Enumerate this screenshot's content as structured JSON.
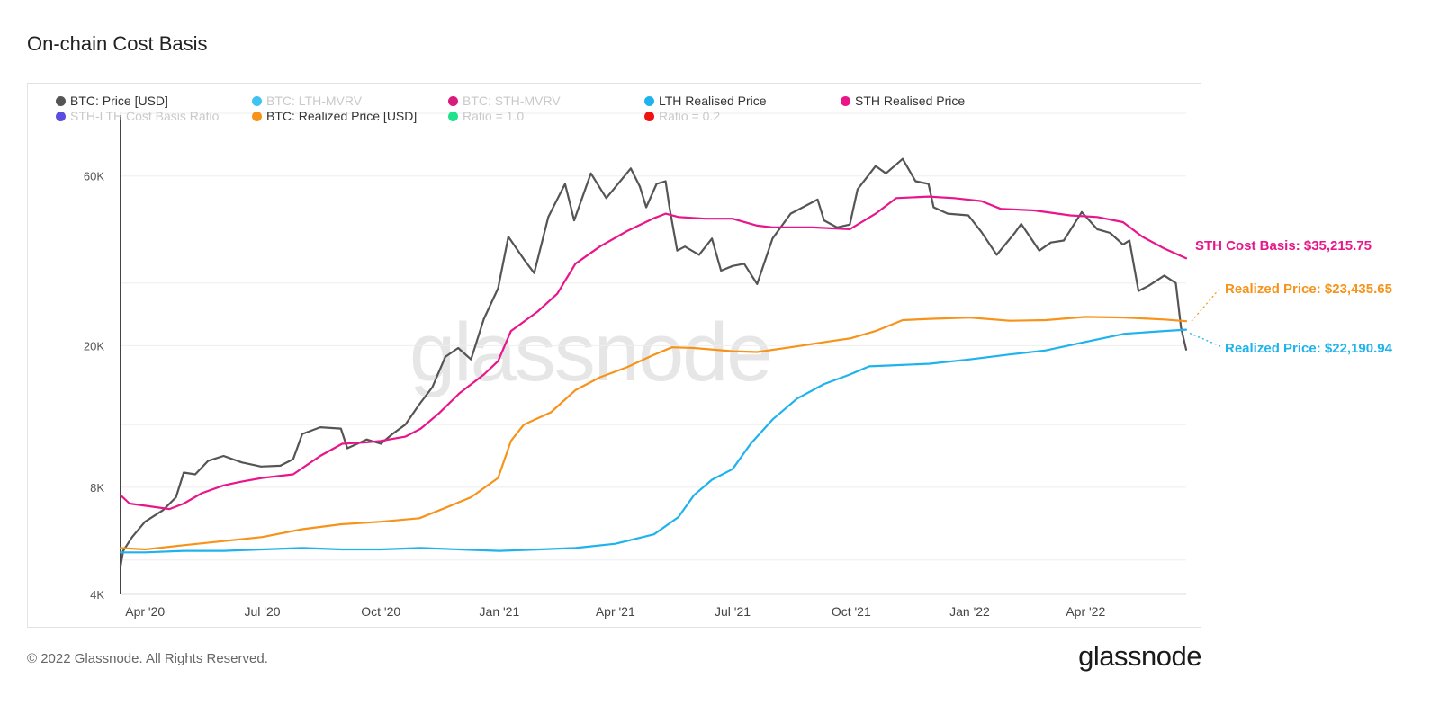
{
  "title": "On-chain Cost Basis",
  "footer": "© 2022 Glassnode. All Rights Reserved.",
  "brand": "glassnode",
  "watermark": "glassnode",
  "legend": [
    {
      "label": "BTC: Price [USD]",
      "color": "#555555",
      "active": true
    },
    {
      "label": "BTC: LTH-MVRV",
      "color": "#3fc3f2",
      "active": false
    },
    {
      "label": "BTC: STH-MVRV",
      "color": "#d81b7d",
      "active": false
    },
    {
      "label": "LTH Realised Price",
      "color": "#1fb3ee",
      "active": true
    },
    {
      "label": "STH Realised Price",
      "color": "#e8168a",
      "active": true
    },
    {
      "label": "STH-LTH Cost Basis Ratio",
      "color": "#5b4de0",
      "active": false
    },
    {
      "label": "BTC: Realized Price [USD]",
      "color": "#f7931a",
      "active": true
    },
    {
      "label": "Ratio = 1.0",
      "color": "#1ee38a",
      "active": false
    },
    {
      "label": "Ratio = 0.2",
      "color": "#f21111",
      "active": false
    }
  ],
  "annotations": {
    "sth": {
      "text": "STH Cost Basis: $35,215.75",
      "color": "#e8168a"
    },
    "realized": {
      "text": "Realized Price: $23,435.65",
      "color": "#f7931a"
    },
    "lth": {
      "text": "Realized Price: $22,190.94",
      "color": "#1fb3ee"
    }
  },
  "chart_data": {
    "type": "line",
    "xlabel": "",
    "ylabel": "",
    "y_scale": "log",
    "ylim": [
      4000,
      90000
    ],
    "xlim": [
      "2020-03-13",
      "2022-06-18"
    ],
    "x_ticks": [
      {
        "date": "2020-04-01",
        "label": "Apr '20"
      },
      {
        "date": "2020-07-01",
        "label": "Jul '20"
      },
      {
        "date": "2020-10-01",
        "label": "Oct '20"
      },
      {
        "date": "2021-01-01",
        "label": "Jan '21"
      },
      {
        "date": "2021-04-01",
        "label": "Apr '21"
      },
      {
        "date": "2021-07-01",
        "label": "Jul '21"
      },
      {
        "date": "2021-10-01",
        "label": "Oct '21"
      },
      {
        "date": "2022-01-01",
        "label": "Jan '22"
      },
      {
        "date": "2022-04-01",
        "label": "Apr '22"
      }
    ],
    "y_ticks": [
      {
        "value": 4000,
        "label": "4K"
      },
      {
        "value": 8000,
        "label": "8K"
      },
      {
        "value": 20000,
        "label": "20K"
      },
      {
        "value": 60000,
        "label": "60K"
      }
    ],
    "grid": true,
    "legend_position": "top",
    "series": [
      {
        "name": "BTC: Price [USD]",
        "color": "#555555",
        "points": [
          [
            "2020-03-13",
            4800
          ],
          [
            "2020-03-15",
            5300
          ],
          [
            "2020-03-22",
            5800
          ],
          [
            "2020-04-01",
            6400
          ],
          [
            "2020-04-15",
            6900
          ],
          [
            "2020-04-25",
            7500
          ],
          [
            "2020-05-01",
            8800
          ],
          [
            "2020-05-10",
            8700
          ],
          [
            "2020-05-20",
            9500
          ],
          [
            "2020-06-01",
            9800
          ],
          [
            "2020-06-15",
            9400
          ],
          [
            "2020-06-30",
            9150
          ],
          [
            "2020-07-15",
            9200
          ],
          [
            "2020-07-25",
            9600
          ],
          [
            "2020-08-01",
            11300
          ],
          [
            "2020-08-15",
            11800
          ],
          [
            "2020-08-31",
            11700
          ],
          [
            "2020-09-05",
            10300
          ],
          [
            "2020-09-20",
            10900
          ],
          [
            "2020-10-01",
            10600
          ],
          [
            "2020-10-10",
            11300
          ],
          [
            "2020-10-20",
            12000
          ],
          [
            "2020-10-31",
            13700
          ],
          [
            "2020-11-10",
            15300
          ],
          [
            "2020-11-20",
            18600
          ],
          [
            "2020-11-30",
            19700
          ],
          [
            "2020-12-10",
            18300
          ],
          [
            "2020-12-20",
            23800
          ],
          [
            "2020-12-31",
            29000
          ],
          [
            "2021-01-08",
            40500
          ],
          [
            "2021-01-20",
            35000
          ],
          [
            "2021-01-28",
            32000
          ],
          [
            "2021-02-08",
            46000
          ],
          [
            "2021-02-21",
            57000
          ],
          [
            "2021-02-28",
            45000
          ],
          [
            "2021-03-13",
            61000
          ],
          [
            "2021-03-25",
            52000
          ],
          [
            "2021-04-13",
            63000
          ],
          [
            "2021-04-20",
            56000
          ],
          [
            "2021-04-25",
            49000
          ],
          [
            "2021-05-03",
            57000
          ],
          [
            "2021-05-10",
            58000
          ],
          [
            "2021-05-13",
            49000
          ],
          [
            "2021-05-19",
            37000
          ],
          [
            "2021-05-25",
            38000
          ],
          [
            "2021-06-05",
            36000
          ],
          [
            "2021-06-15",
            40000
          ],
          [
            "2021-06-22",
            32500
          ],
          [
            "2021-07-01",
            33500
          ],
          [
            "2021-07-10",
            34000
          ],
          [
            "2021-07-20",
            29800
          ],
          [
            "2021-08-01",
            40000
          ],
          [
            "2021-08-15",
            47000
          ],
          [
            "2021-09-05",
            51500
          ],
          [
            "2021-09-10",
            45000
          ],
          [
            "2021-09-20",
            43000
          ],
          [
            "2021-09-30",
            43800
          ],
          [
            "2021-10-06",
            55000
          ],
          [
            "2021-10-20",
            64000
          ],
          [
            "2021-10-28",
            61000
          ],
          [
            "2021-11-10",
            67000
          ],
          [
            "2021-11-20",
            58000
          ],
          [
            "2021-11-30",
            57000
          ],
          [
            "2021-12-04",
            49000
          ],
          [
            "2021-12-15",
            47000
          ],
          [
            "2021-12-31",
            46500
          ],
          [
            "2022-01-10",
            41800
          ],
          [
            "2022-01-22",
            36000
          ],
          [
            "2022-02-05",
            41500
          ],
          [
            "2022-02-10",
            44000
          ],
          [
            "2022-02-24",
            37000
          ],
          [
            "2022-03-05",
            39000
          ],
          [
            "2022-03-15",
            39500
          ],
          [
            "2022-03-29",
            47500
          ],
          [
            "2022-04-10",
            42500
          ],
          [
            "2022-04-20",
            41500
          ],
          [
            "2022-04-30",
            38500
          ],
          [
            "2022-05-05",
            39500
          ],
          [
            "2022-05-12",
            28500
          ],
          [
            "2022-05-20",
            29500
          ],
          [
            "2022-06-01",
            31500
          ],
          [
            "2022-06-10",
            30000
          ],
          [
            "2022-06-14",
            22500
          ],
          [
            "2022-06-18",
            19500
          ]
        ]
      },
      {
        "name": "STH Realised Price",
        "color": "#e8168a",
        "points": [
          [
            "2020-03-13",
            7600
          ],
          [
            "2020-03-20",
            7200
          ],
          [
            "2020-04-01",
            7100
          ],
          [
            "2020-04-20",
            6950
          ],
          [
            "2020-05-01",
            7200
          ],
          [
            "2020-05-15",
            7700
          ],
          [
            "2020-06-01",
            8100
          ],
          [
            "2020-06-15",
            8300
          ],
          [
            "2020-07-01",
            8500
          ],
          [
            "2020-07-25",
            8700
          ],
          [
            "2020-08-15",
            9800
          ],
          [
            "2020-09-01",
            10600
          ],
          [
            "2020-09-20",
            10700
          ],
          [
            "2020-10-01",
            10800
          ],
          [
            "2020-10-20",
            11100
          ],
          [
            "2020-11-01",
            11700
          ],
          [
            "2020-11-15",
            12900
          ],
          [
            "2020-12-01",
            14700
          ],
          [
            "2020-12-20",
            16600
          ],
          [
            "2020-12-31",
            18100
          ],
          [
            "2021-01-10",
            22000
          ],
          [
            "2021-01-31",
            25000
          ],
          [
            "2021-02-15",
            28000
          ],
          [
            "2021-03-01",
            34000
          ],
          [
            "2021-03-20",
            38000
          ],
          [
            "2021-04-10",
            42000
          ],
          [
            "2021-04-30",
            45500
          ],
          [
            "2021-05-10",
            47000
          ],
          [
            "2021-05-20",
            46000
          ],
          [
            "2021-06-10",
            45500
          ],
          [
            "2021-07-01",
            45500
          ],
          [
            "2021-07-20",
            43500
          ],
          [
            "2021-08-01",
            43000
          ],
          [
            "2021-09-01",
            43000
          ],
          [
            "2021-09-30",
            42500
          ],
          [
            "2021-10-20",
            47000
          ],
          [
            "2021-11-05",
            52000
          ],
          [
            "2021-11-30",
            52500
          ],
          [
            "2021-12-20",
            52000
          ],
          [
            "2022-01-10",
            51000
          ],
          [
            "2022-01-25",
            48500
          ],
          [
            "2022-02-20",
            48000
          ],
          [
            "2022-03-20",
            46500
          ],
          [
            "2022-04-10",
            46000
          ],
          [
            "2022-04-30",
            44500
          ],
          [
            "2022-05-15",
            40500
          ],
          [
            "2022-06-01",
            37500
          ],
          [
            "2022-06-18",
            35215.75
          ]
        ]
      },
      {
        "name": "BTC: Realized Price [USD]",
        "color": "#f7931a",
        "points": [
          [
            "2020-03-13",
            5400
          ],
          [
            "2020-04-01",
            5350
          ],
          [
            "2020-05-01",
            5500
          ],
          [
            "2020-06-01",
            5650
          ],
          [
            "2020-07-01",
            5800
          ],
          [
            "2020-08-01",
            6100
          ],
          [
            "2020-09-01",
            6300
          ],
          [
            "2020-10-01",
            6400
          ],
          [
            "2020-10-31",
            6550
          ],
          [
            "2020-11-20",
            7000
          ],
          [
            "2020-12-10",
            7500
          ],
          [
            "2020-12-31",
            8500
          ],
          [
            "2021-01-10",
            10800
          ],
          [
            "2021-01-20",
            12000
          ],
          [
            "2021-02-10",
            13000
          ],
          [
            "2021-03-01",
            15000
          ],
          [
            "2021-03-20",
            16300
          ],
          [
            "2021-04-10",
            17400
          ],
          [
            "2021-04-30",
            18800
          ],
          [
            "2021-05-15",
            19800
          ],
          [
            "2021-06-01",
            19700
          ],
          [
            "2021-07-01",
            19300
          ],
          [
            "2021-07-20",
            19200
          ],
          [
            "2021-08-15",
            19800
          ],
          [
            "2021-09-15",
            20600
          ],
          [
            "2021-10-01",
            21000
          ],
          [
            "2021-10-20",
            22000
          ],
          [
            "2021-11-10",
            23600
          ],
          [
            "2021-12-01",
            23800
          ],
          [
            "2022-01-01",
            24000
          ],
          [
            "2022-02-01",
            23500
          ],
          [
            "2022-03-01",
            23600
          ],
          [
            "2022-04-01",
            24100
          ],
          [
            "2022-05-01",
            24000
          ],
          [
            "2022-06-01",
            23700
          ],
          [
            "2022-06-18",
            23435.65
          ]
        ]
      },
      {
        "name": "LTH Realised Price",
        "color": "#1fb3ee",
        "points": [
          [
            "2020-03-13",
            5250
          ],
          [
            "2020-04-01",
            5250
          ],
          [
            "2020-05-01",
            5300
          ],
          [
            "2020-06-01",
            5300
          ],
          [
            "2020-07-01",
            5350
          ],
          [
            "2020-08-01",
            5400
          ],
          [
            "2020-09-01",
            5350
          ],
          [
            "2020-10-01",
            5350
          ],
          [
            "2020-11-01",
            5400
          ],
          [
            "2020-12-01",
            5350
          ],
          [
            "2021-01-01",
            5300
          ],
          [
            "2021-02-01",
            5350
          ],
          [
            "2021-03-01",
            5400
          ],
          [
            "2021-04-01",
            5550
          ],
          [
            "2021-05-01",
            5900
          ],
          [
            "2021-05-20",
            6600
          ],
          [
            "2021-06-01",
            7600
          ],
          [
            "2021-06-15",
            8400
          ],
          [
            "2021-07-01",
            9000
          ],
          [
            "2021-07-15",
            10600
          ],
          [
            "2021-08-01",
            12400
          ],
          [
            "2021-08-20",
            14200
          ],
          [
            "2021-09-10",
            15600
          ],
          [
            "2021-09-30",
            16600
          ],
          [
            "2021-10-15",
            17500
          ],
          [
            "2021-11-01",
            17600
          ],
          [
            "2021-12-01",
            17800
          ],
          [
            "2022-01-01",
            18300
          ],
          [
            "2022-02-01",
            18900
          ],
          [
            "2022-03-01",
            19400
          ],
          [
            "2022-04-01",
            20500
          ],
          [
            "2022-05-01",
            21600
          ],
          [
            "2022-06-01",
            22000
          ],
          [
            "2022-06-18",
            22190.94
          ]
        ]
      }
    ]
  }
}
